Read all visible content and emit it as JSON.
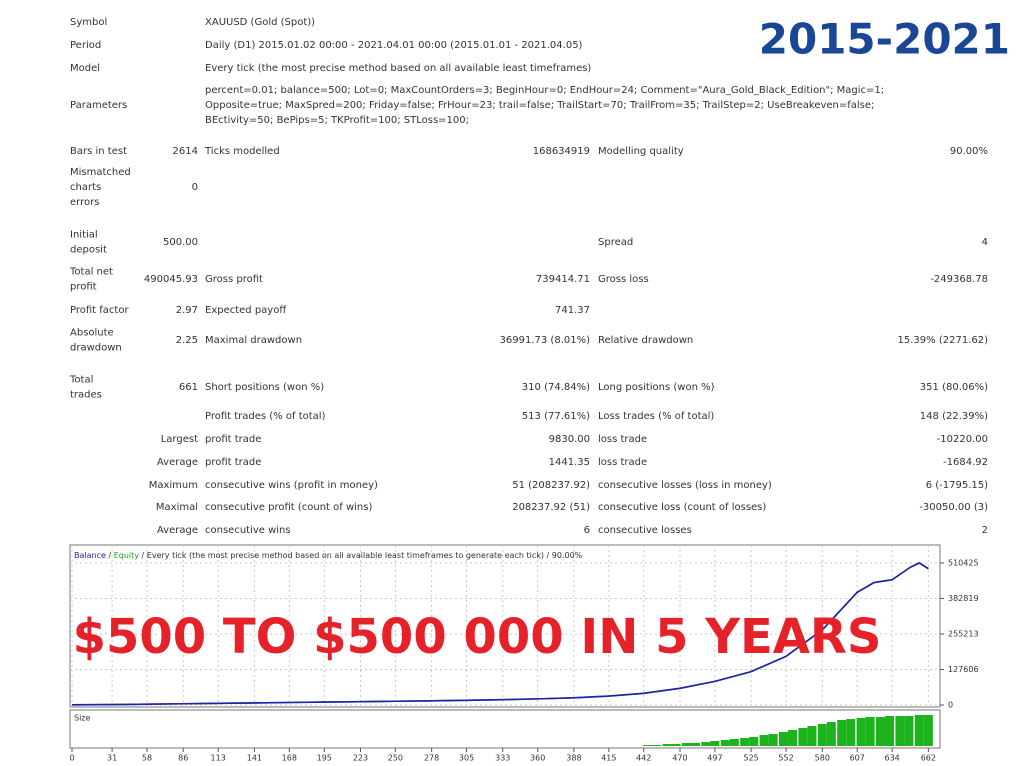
{
  "badge": "2015-2021",
  "report": {
    "rows": [
      {
        "label": "Symbol",
        "text": "XAUUSD (Gold (Spot))"
      },
      {
        "label": "Period",
        "text": "Daily (D1) 2015.01.02 00:00 - 2021.04.01 00:00 (2015.01.01 - 2021.04.05)"
      },
      {
        "label": "Model",
        "text": "Every tick (the most precise method based on all available least timeframes)"
      },
      {
        "label": "Parameters",
        "lines": [
          "percent=0.01; balance=500; Lot=0; MaxCountOrders=3; BeginHour=0; EndHour=24; Comment=\"Aura_Gold_Black_Edition\"; Magic=1;",
          "Opposite=true; MaxSpred=200; Friday=false; FrHour=23; trail=false; TrailStart=70; TrailFrom=35; TrailStep=2; UseBreakeven=false;",
          "BEctivity=50; BePips=5; TKProfit=100; STLoss=100;"
        ]
      },
      {
        "label": "Bars in test",
        "value": "2614",
        "label2": "Ticks modelled",
        "value2": "168634919",
        "label3": "Modelling quality",
        "value3": "90.00%"
      },
      {
        "label": [
          "Mismatched",
          "charts",
          "errors"
        ],
        "value": "0"
      },
      {
        "label": [
          "Initial",
          "deposit"
        ],
        "value": "500.00",
        "label3": "Spread",
        "value3": "4"
      },
      {
        "label": [
          "Total net",
          "profit"
        ],
        "value": "490045.93",
        "label2": "Gross profit",
        "value2": "739414.71",
        "label3": "Gross loss",
        "value3": "-249368.78"
      },
      {
        "label": "Profit factor",
        "value": "2.97",
        "label2": "Expected payoff",
        "value2": "741.37"
      },
      {
        "label": [
          "Absolute",
          "drawdown"
        ],
        "value": "2.25",
        "label2": "Maximal drawdown",
        "value2": "36991.73 (8.01%)",
        "label3": "Relative drawdown",
        "value3": "15.39% (2271.62)"
      },
      {
        "label": [
          "Total",
          "trades"
        ],
        "value": "661",
        "label2": "Short positions (won %)",
        "value2": "310 (74.84%)",
        "label3": "Long positions (won %)",
        "value3": "351 (80.06%)"
      },
      {
        "label2": "Profit trades (% of total)",
        "value2": "513 (77.61%)",
        "label3": "Loss trades (% of total)",
        "value3": "148 (22.39%)"
      },
      {
        "value": "Largest",
        "label2": "profit trade",
        "value2": "9830.00",
        "label3": "loss trade",
        "value3": "-10220.00"
      },
      {
        "value": "Average",
        "label2": "profit trade",
        "value2": "1441.35",
        "label3": "loss trade",
        "value3": "-1684.92"
      },
      {
        "value": "Maximum",
        "label2": "consecutive wins (profit in money)",
        "value2": "51 (208237.92)",
        "label3": "consecutive losses (loss in money)",
        "value3": "6 (-1795.15)"
      },
      {
        "value": "Maximal",
        "label2": "consecutive profit (count of wins)",
        "value2": "208237.92 (51)",
        "label3": "consecutive loss (count of losses)",
        "value3": "-30050.00 (3)"
      },
      {
        "value": "Average",
        "label2": "consecutive wins",
        "value2": "6",
        "label3": "consecutive losses",
        "value3": "2"
      }
    ]
  },
  "chart_data": {
    "type": "line",
    "separator": "/",
    "subtitle": "/ Every tick (the most precise method based on all available least timeframes to generate each tick) / 90.00%",
    "x": [
      0,
      31,
      58,
      86,
      113,
      141,
      168,
      195,
      223,
      250,
      278,
      305,
      333,
      360,
      388,
      415,
      442,
      470,
      497,
      525,
      552,
      580,
      607,
      620,
      634,
      648,
      655,
      662
    ],
    "series": [
      {
        "name": "Equity",
        "color": "#22a022",
        "values": [
          500,
          1500,
          3000,
          4500,
          6000,
          7500,
          9000,
          10500,
          12000,
          13500,
          15000,
          17000,
          19000,
          22000,
          26000,
          32000,
          42000,
          60000,
          85000,
          120000,
          175000,
          270000,
          405000,
          440000,
          450000,
          495000,
          510425,
          490046
        ]
      },
      {
        "name": "Balance",
        "color": "#2020b0",
        "values": [
          500,
          1500,
          3000,
          4500,
          6000,
          7500,
          9000,
          10500,
          12000,
          13500,
          15000,
          17000,
          19000,
          22000,
          26000,
          32000,
          42000,
          60000,
          85000,
          120000,
          175000,
          270000,
          405000,
          440000,
          450000,
          495000,
          510425,
          490046
        ]
      }
    ],
    "xlim": [
      0,
      671
    ],
    "xticks": [
      0,
      31,
      58,
      86,
      113,
      141,
      168,
      195,
      223,
      250,
      278,
      305,
      333,
      360,
      388,
      415,
      442,
      470,
      497,
      525,
      552,
      580,
      607,
      634,
      662
    ],
    "ylim": [
      0,
      575000
    ],
    "yticks": [
      0,
      127606,
      255213,
      382819,
      510425
    ],
    "grid": true,
    "overlay_text": "$500 TO $500 000 IN 5 YEARS",
    "size": {
      "label": "Size",
      "color": "#1db31d",
      "ylim": [
        0,
        32
      ],
      "x": [
        445,
        452,
        460,
        467,
        475,
        482,
        490,
        497,
        505,
        512,
        520,
        527,
        535,
        542,
        550,
        557,
        565,
        572,
        580,
        587,
        595,
        602,
        610,
        617,
        625,
        632,
        640,
        647,
        655,
        662
      ],
      "values": [
        1,
        1,
        2,
        2,
        3,
        3,
        4,
        5,
        6,
        7,
        8,
        9,
        11,
        12,
        14,
        16,
        18,
        20,
        22,
        24,
        26,
        27,
        28,
        29,
        29,
        30,
        30,
        30,
        31,
        31
      ]
    }
  }
}
